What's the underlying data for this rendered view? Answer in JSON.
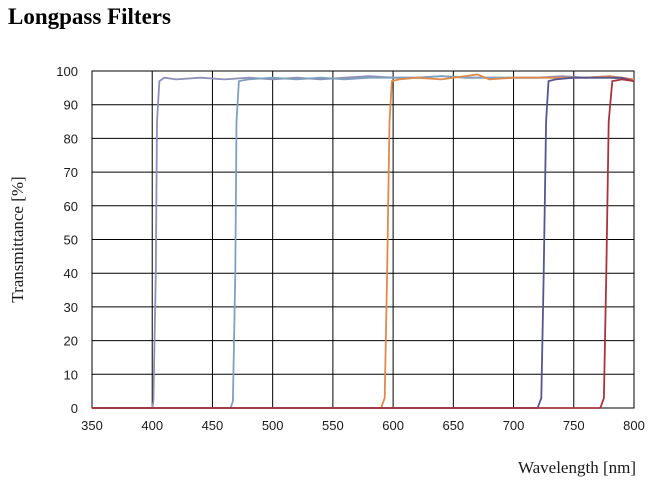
{
  "chart_data": {
    "type": "line",
    "title": "Longpass Filters",
    "xlabel": "Wavelength [nm]",
    "ylabel": "Transmittance [%]",
    "xlim": [
      350,
      800
    ],
    "ylim": [
      0,
      100
    ],
    "x_ticks": [
      350,
      400,
      450,
      500,
      550,
      600,
      650,
      700,
      750,
      800
    ],
    "y_ticks": [
      0,
      10,
      20,
      30,
      40,
      50,
      60,
      70,
      80,
      90,
      100
    ],
    "grid": true,
    "legend": "none",
    "series": [
      {
        "color": "#8e8fb8",
        "points": [
          [
            350,
            0
          ],
          [
            400,
            0
          ],
          [
            401,
            2
          ],
          [
            403,
            40
          ],
          [
            404,
            85
          ],
          [
            406,
            97
          ],
          [
            410,
            98
          ],
          [
            420,
            97.5
          ],
          [
            440,
            98
          ],
          [
            460,
            97.5
          ],
          [
            480,
            98
          ],
          [
            500,
            97.5
          ],
          [
            520,
            98
          ],
          [
            540,
            97.5
          ],
          [
            560,
            98
          ],
          [
            580,
            98.5
          ],
          [
            600,
            98
          ],
          [
            620,
            98
          ],
          [
            640,
            98.5
          ],
          [
            660,
            98
          ],
          [
            680,
            98
          ],
          [
            700,
            98
          ],
          [
            720,
            98
          ],
          [
            740,
            98.5
          ],
          [
            760,
            98
          ],
          [
            780,
            98.5
          ],
          [
            800,
            97
          ]
        ]
      },
      {
        "color": "#7f9fbf",
        "points": [
          [
            350,
            0
          ],
          [
            465,
            0
          ],
          [
            467,
            2
          ],
          [
            469,
            40
          ],
          [
            470,
            85
          ],
          [
            472,
            97
          ],
          [
            480,
            97.5
          ],
          [
            500,
            98
          ],
          [
            520,
            97.5
          ],
          [
            540,
            98
          ],
          [
            560,
            97.5
          ],
          [
            580,
            98
          ],
          [
            600,
            98
          ],
          [
            620,
            98
          ],
          [
            640,
            98.5
          ],
          [
            660,
            98
          ],
          [
            680,
            98
          ],
          [
            700,
            98
          ],
          [
            720,
            98
          ],
          [
            740,
            98
          ],
          [
            760,
            98
          ],
          [
            780,
            98
          ],
          [
            800,
            97.5
          ]
        ]
      },
      {
        "color": "#e0894a",
        "points": [
          [
            350,
            0
          ],
          [
            590,
            0
          ],
          [
            593,
            3
          ],
          [
            595,
            40
          ],
          [
            597,
            85
          ],
          [
            599,
            97
          ],
          [
            605,
            97.5
          ],
          [
            620,
            98
          ],
          [
            640,
            97.5
          ],
          [
            660,
            98.5
          ],
          [
            670,
            99
          ],
          [
            680,
            97.5
          ],
          [
            700,
            98
          ],
          [
            720,
            98
          ],
          [
            740,
            98
          ],
          [
            760,
            98
          ],
          [
            780,
            98.5
          ],
          [
            800,
            97.5
          ]
        ]
      },
      {
        "color": "#55568e",
        "points": [
          [
            350,
            0
          ],
          [
            720,
            0
          ],
          [
            723,
            3
          ],
          [
            725,
            40
          ],
          [
            727,
            85
          ],
          [
            729,
            97
          ],
          [
            735,
            97.5
          ],
          [
            750,
            98
          ],
          [
            770,
            98
          ],
          [
            790,
            98
          ],
          [
            800,
            97
          ]
        ]
      },
      {
        "color": "#a8333e",
        "points": [
          [
            350,
            0
          ],
          [
            772,
            0
          ],
          [
            775,
            3
          ],
          [
            777,
            40
          ],
          [
            779,
            85
          ],
          [
            782,
            97
          ],
          [
            790,
            97.5
          ],
          [
            800,
            97
          ]
        ]
      }
    ]
  }
}
